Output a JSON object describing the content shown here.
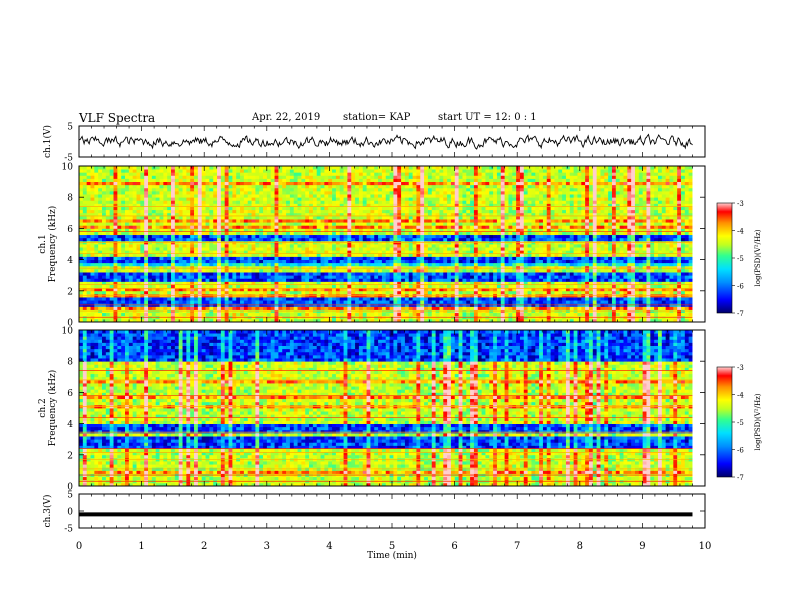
{
  "header": {
    "title": "VLF Spectra",
    "date": "Apr. 22, 2019",
    "station": "station= KAP",
    "start": "start  UT =   12: 0  : 1"
  },
  "colors": {
    "spectrogram_scale": [
      "#00006a",
      "#0000ff",
      "#0090ff",
      "#00e0ff",
      "#30ff90",
      "#c0ff20",
      "#ffff00",
      "#ff9000",
      "#ff0000",
      "#ffd0d0"
    ],
    "trace": "#000000",
    "ch3_line": "#000000"
  },
  "chart_data": [
    {
      "name": "ch1-waveform",
      "type": "line",
      "ylabel": "ch.1(V)",
      "ylim": [
        -5,
        5
      ],
      "yticks": [
        "5",
        "-5"
      ],
      "xlim": [
        0,
        10
      ],
      "series": [
        {
          "values_range_approx": [
            -2.5,
            2.5
          ],
          "x_extent": [
            0,
            9.8
          ]
        }
      ]
    },
    {
      "name": "ch1-spectrogram",
      "type": "heatmap",
      "ylabel": "ch.1\nFrequency (kHz)",
      "ylim": [
        0,
        10
      ],
      "yticks": [
        "0",
        "2",
        "4",
        "6",
        "8",
        "10"
      ],
      "xlim": [
        0,
        10
      ],
      "x_extent": [
        0,
        9.8
      ],
      "dark_bands_khz": [
        [
          2.6,
          3.3
        ],
        [
          3.7,
          4.1
        ],
        [
          5.2,
          5.6
        ],
        [
          1.0,
          1.5
        ]
      ],
      "colorbar": {
        "label": "log(PSD)(V²/Hz)",
        "range": [
          -7,
          -3
        ],
        "ticks": [
          "-3",
          "-4",
          "-5",
          "-6",
          "-7"
        ]
      }
    },
    {
      "name": "ch2-spectrogram",
      "type": "heatmap",
      "ylabel": "ch.2\nFrequency (kHz)",
      "ylim": [
        0,
        10
      ],
      "yticks": [
        "0",
        "2",
        "4",
        "6",
        "8",
        "10"
      ],
      "xlim": [
        0,
        10
      ],
      "x_extent": [
        0,
        9.8
      ],
      "dark_bands_khz": [
        [
          2.5,
          3.3
        ],
        [
          3.5,
          4.0
        ],
        [
          8.0,
          10.0
        ]
      ],
      "colorbar": {
        "label": "log(PSD)(V²/Hz)",
        "range": [
          -7,
          -3
        ],
        "ticks": [
          "-3",
          "-4",
          "-5",
          "-6",
          "-7"
        ]
      }
    },
    {
      "name": "ch3-waveform",
      "type": "line",
      "ylabel": "ch.3(V)",
      "ylim": [
        -5,
        5
      ],
      "yticks": [
        "5",
        "0",
        "-5"
      ],
      "xlim": [
        0,
        10
      ],
      "series": [
        {
          "constant_value": -1,
          "x_extent": [
            0,
            9.8
          ]
        }
      ]
    }
  ],
  "xaxis": {
    "label": "Time (min)",
    "ticks": [
      "0",
      "1",
      "2",
      "3",
      "4",
      "5",
      "6",
      "7",
      "8",
      "9",
      "10"
    ]
  }
}
